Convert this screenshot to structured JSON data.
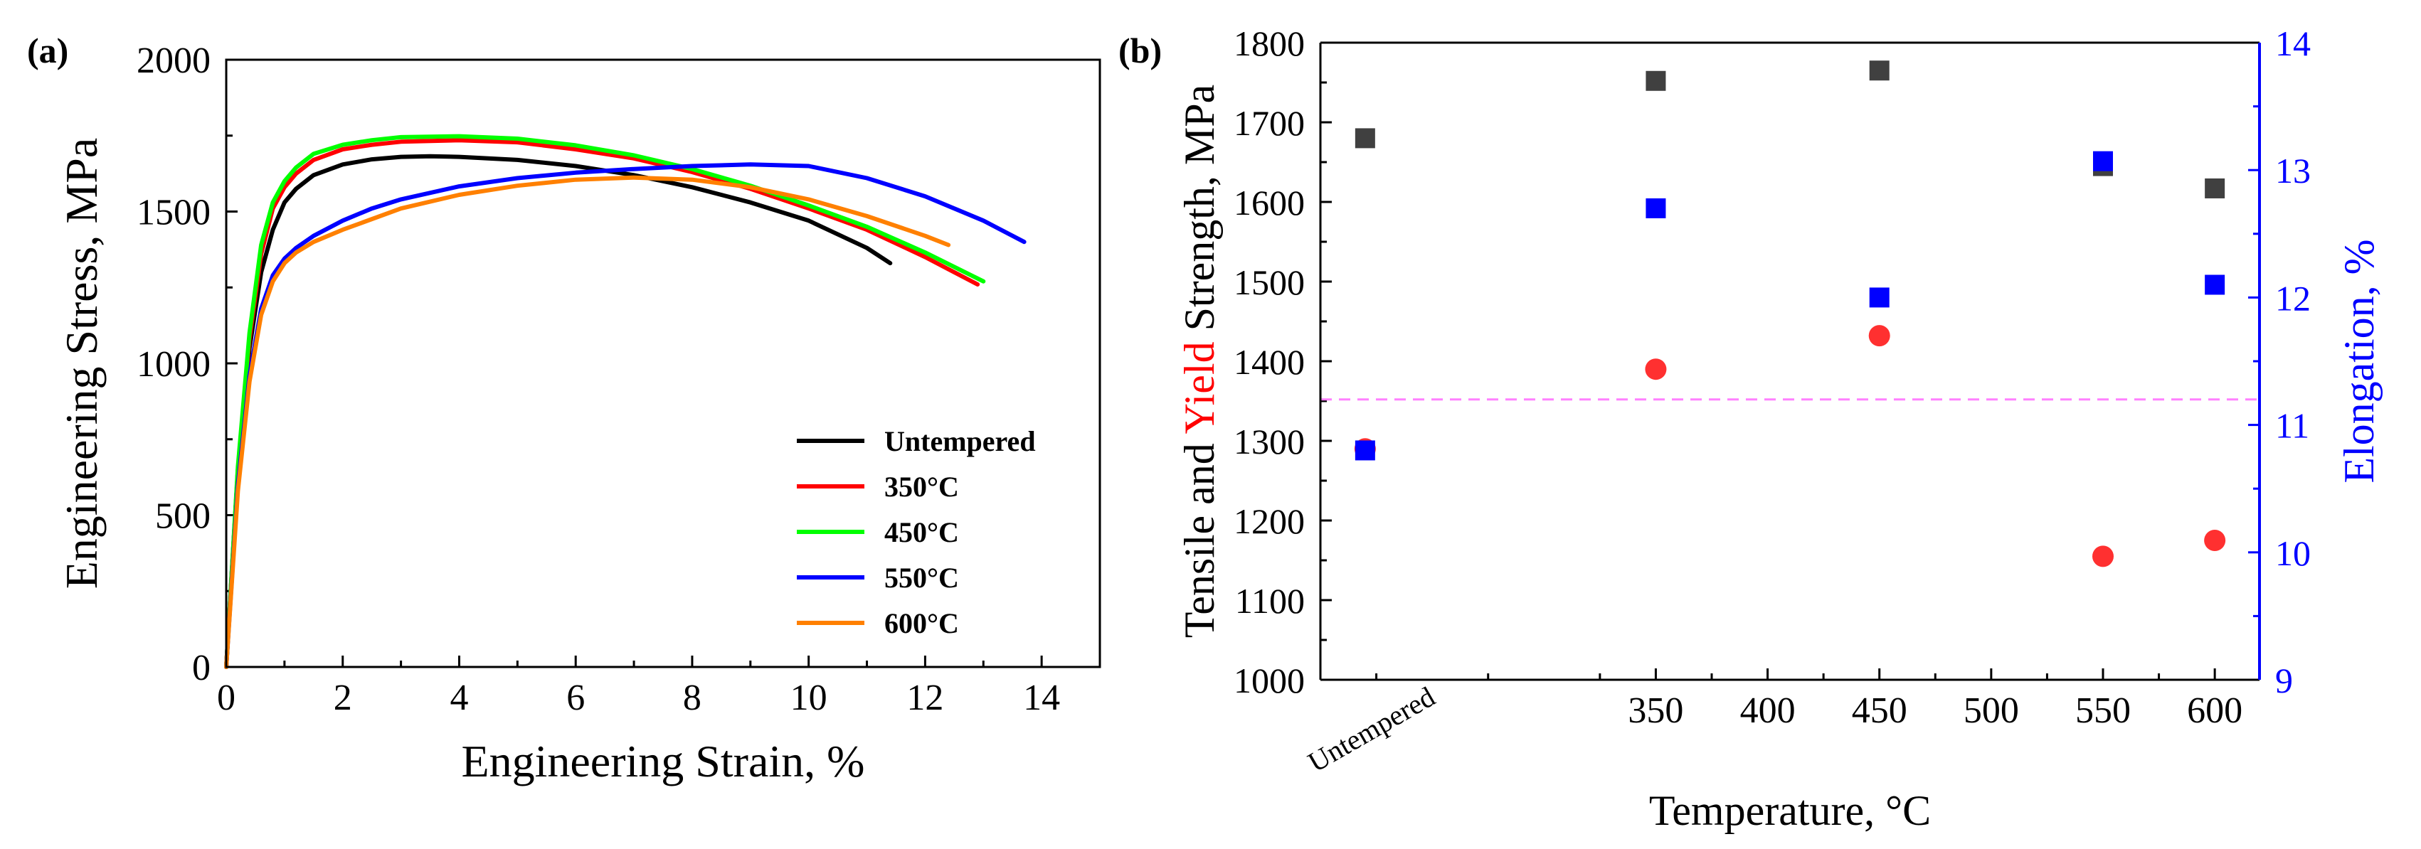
{
  "chart_data": [
    {
      "panel_label": "(a)",
      "type": "line",
      "xlabel": "Engineering Strain, %",
      "ylabel": "Engineering Stress, MPa",
      "xlim": [
        0,
        15
      ],
      "ylim": [
        0,
        2000
      ],
      "xticks": [
        "0",
        "2",
        "4",
        "6",
        "8",
        "10",
        "12",
        "14"
      ],
      "yticks": [
        "0",
        "500",
        "1000",
        "1500",
        "2000"
      ],
      "legend_position": "bottom-right",
      "series": [
        {
          "name": "Untempered",
          "color": "#000000",
          "x": [
            0,
            0.2,
            0.4,
            0.6,
            0.8,
            1.0,
            1.2,
            1.5,
            2.0,
            2.5,
            3.0,
            3.5,
            4.0,
            5.0,
            6.0,
            7.0,
            8.0,
            9.0,
            10.0,
            11.0,
            11.4
          ],
          "y": [
            0,
            650,
            1050,
            1300,
            1440,
            1530,
            1575,
            1620,
            1655,
            1672,
            1680,
            1682,
            1680,
            1670,
            1650,
            1620,
            1580,
            1530,
            1470,
            1380,
            1330
          ]
        },
        {
          "name": "350°C",
          "color": "#ff0000",
          "x": [
            0,
            0.2,
            0.4,
            0.6,
            0.8,
            1.0,
            1.2,
            1.5,
            2.0,
            2.5,
            3.0,
            4.0,
            5.0,
            6.0,
            7.0,
            8.0,
            9.0,
            10.0,
            11.0,
            12.0,
            12.9
          ],
          "y": [
            0,
            650,
            1080,
            1360,
            1510,
            1580,
            1625,
            1670,
            1705,
            1720,
            1730,
            1735,
            1728,
            1705,
            1675,
            1630,
            1575,
            1510,
            1440,
            1350,
            1260
          ]
        },
        {
          "name": "450°C",
          "color": "#00ff00",
          "x": [
            0,
            0.2,
            0.4,
            0.6,
            0.8,
            1.0,
            1.2,
            1.5,
            2.0,
            2.5,
            3.0,
            4.0,
            5.0,
            6.0,
            7.0,
            8.0,
            9.0,
            10.0,
            11.0,
            12.0,
            13.0
          ],
          "y": [
            0,
            660,
            1100,
            1390,
            1530,
            1600,
            1645,
            1690,
            1720,
            1735,
            1745,
            1748,
            1740,
            1718,
            1685,
            1640,
            1585,
            1520,
            1450,
            1365,
            1270
          ]
        },
        {
          "name": "550°C",
          "color": "#0000ff",
          "x": [
            0,
            0.2,
            0.4,
            0.6,
            0.8,
            1.0,
            1.2,
            1.5,
            2.0,
            2.5,
            3.0,
            4.0,
            5.0,
            6.0,
            7.0,
            8.0,
            9.0,
            10.0,
            11.0,
            12.0,
            13.0,
            13.7
          ],
          "y": [
            0,
            600,
            960,
            1180,
            1290,
            1345,
            1380,
            1420,
            1470,
            1510,
            1540,
            1583,
            1610,
            1628,
            1640,
            1650,
            1655,
            1650,
            1610,
            1550,
            1470,
            1400
          ]
        },
        {
          "name": "600°C",
          "color": "#ff8000",
          "x": [
            0,
            0.2,
            0.4,
            0.6,
            0.8,
            1.0,
            1.2,
            1.5,
            2.0,
            3.0,
            4.0,
            5.0,
            6.0,
            7.0,
            8.0,
            9.0,
            10.0,
            11.0,
            12.0,
            12.4
          ],
          "y": [
            0,
            580,
            940,
            1160,
            1270,
            1330,
            1365,
            1400,
            1440,
            1510,
            1555,
            1585,
            1605,
            1612,
            1605,
            1580,
            1540,
            1485,
            1420,
            1390
          ]
        }
      ]
    },
    {
      "panel_label": "(b)",
      "type": "scatter",
      "xlabel": "Temperature, °C",
      "ylabel_parts": [
        "Tensile and ",
        "Yield",
        " Strength, MPa"
      ],
      "y2label": "Elongation, %",
      "categories": [
        "Untempered",
        "350",
        "450",
        "550",
        "600"
      ],
      "x": [
        220,
        350,
        450,
        550,
        600
      ],
      "xlim": [
        200,
        620
      ],
      "xticks": [
        "350",
        "400",
        "450",
        "500",
        "550",
        "600"
      ],
      "xtick_values": [
        350,
        400,
        450,
        500,
        550,
        600
      ],
      "untempered_label": "Untempered",
      "ylim": [
        1000,
        1800
      ],
      "yticks": [
        "1000",
        "1100",
        "1200",
        "1300",
        "1400",
        "1500",
        "1600",
        "1700",
        "1800"
      ],
      "y2lim": [
        9,
        14
      ],
      "y2ticks": [
        "9",
        "10",
        "11",
        "12",
        "13",
        "14"
      ],
      "reference_line": {
        "axis": "y2",
        "value": 11.2,
        "color": "#ff80ff",
        "style": "dashed"
      },
      "colors": {
        "tensile": "#404040",
        "yield": "#ff3030",
        "elongation": "#0000ff",
        "axis_right": "#0000ff",
        "ylabel_highlight": "#ff0000"
      },
      "series": [
        {
          "name": "Tensile Strength",
          "axis": "y",
          "marker": "square",
          "values": [
            1680,
            1752,
            1765,
            1645,
            1617
          ]
        },
        {
          "name": "Yield Strength",
          "axis": "y",
          "marker": "circle",
          "values": [
            1290,
            1390,
            1432,
            1155,
            1175
          ]
        },
        {
          "name": "Elongation",
          "axis": "y2",
          "marker": "square",
          "values": [
            10.8,
            12.7,
            12.0,
            13.07,
            12.1
          ]
        }
      ]
    }
  ]
}
